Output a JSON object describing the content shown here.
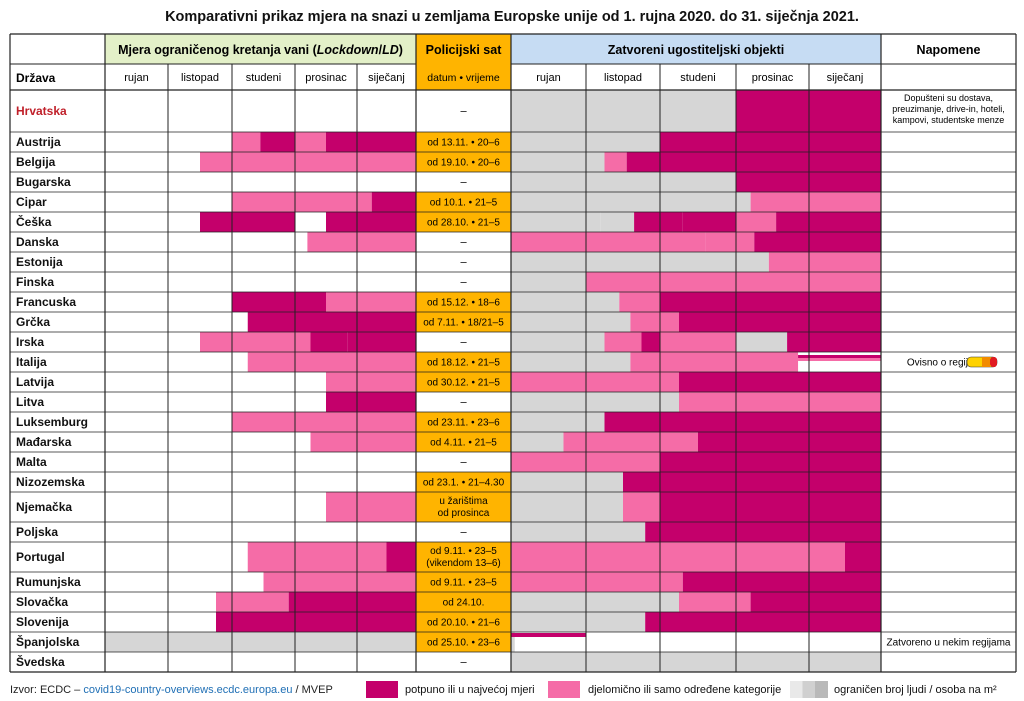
{
  "title": "Komparativni prikaz mjera na snazi u zemljama Europske unije od 1. rujna 2020. do 31. siječnja 2021.",
  "colors": {
    "full": "#c4006b",
    "partial": "#f56ca7",
    "limited": "#d6d6d6",
    "curfew_bg": "#ffb400",
    "lockdown_header_bg": "#e3f0c8",
    "restaurants_header_bg": "#c6dcf3"
  },
  "chart_data": {
    "type": "table",
    "groups": {
      "lockdown": "Mjera ograničenog kretanja vani (Lockdown/LD)",
      "curfew": "Policijski sat",
      "restaurants": "Zatvoreni ugostiteljski objekti",
      "notes": "Napomene"
    },
    "row_header": "Država",
    "months": [
      "rujan",
      "listopad",
      "studeni",
      "prosinac",
      "siječanj"
    ],
    "curfew_subheader": "datum • vrijeme",
    "countries": [
      {
        "name": "Hrvatska",
        "highlight": true,
        "curfew": "–",
        "note": "Dopušteni su dostava, preuzimanje, drive-in, hoteli, kampovi, studentske menze",
        "lockdown": [],
        "restaurants": [
          [
            0,
            3,
            "L"
          ],
          [
            3,
            5,
            "F"
          ]
        ]
      },
      {
        "name": "Austrija",
        "curfew": "od 13.11. • 20–6",
        "lockdown": [
          [
            2,
            2.45,
            "P"
          ],
          [
            2.45,
            3,
            "F"
          ],
          [
            3,
            3.5,
            "P"
          ],
          [
            3.5,
            5,
            "F"
          ]
        ],
        "restaurants": [
          [
            0,
            2,
            "L"
          ],
          [
            2,
            5,
            "F"
          ]
        ]
      },
      {
        "name": "Belgija",
        "curfew": "od 19.10. • 20–6",
        "lockdown": [
          [
            1.5,
            5,
            "P"
          ]
        ],
        "restaurants": [
          [
            0,
            1.25,
            "L"
          ],
          [
            1.25,
            1.55,
            "P"
          ],
          [
            1.55,
            5,
            "F"
          ]
        ]
      },
      {
        "name": "Bugarska",
        "curfew": "–",
        "lockdown": [],
        "restaurants": [
          [
            0,
            3,
            "L"
          ],
          [
            3,
            5,
            "F"
          ]
        ]
      },
      {
        "name": "Cipar",
        "curfew": "od 10.1. • 21–5",
        "lockdown": [
          [
            2,
            4.25,
            "P"
          ],
          [
            4.25,
            5,
            "F"
          ]
        ],
        "restaurants": [
          [
            0,
            3,
            "L"
          ],
          [
            3,
            3.2,
            "L"
          ],
          [
            3.2,
            5,
            "P"
          ]
        ]
      },
      {
        "name": "Češka",
        "curfew": "od 28.10. • 21–5",
        "lockdown": [
          [
            1.5,
            3,
            "F"
          ],
          [
            3.5,
            5,
            "F"
          ]
        ],
        "restaurants": [
          [
            0,
            1.2,
            "L"
          ],
          [
            1.2,
            1.65,
            "L"
          ],
          [
            1.65,
            2.3,
            "F"
          ],
          [
            2.3,
            3.55,
            "F"
          ],
          [
            3,
            3.55,
            "P"
          ],
          [
            3.55,
            5,
            "F"
          ]
        ]
      },
      {
        "name": "Danska",
        "curfew": "–",
        "lockdown": [
          [
            3.2,
            5,
            "P"
          ]
        ],
        "restaurants": [
          [
            0,
            2.6,
            "P"
          ],
          [
            2.6,
            3.25,
            "P"
          ],
          [
            3.25,
            5,
            "F"
          ]
        ]
      },
      {
        "name": "Estonija",
        "curfew": "–",
        "lockdown": [],
        "restaurants": [
          [
            0,
            3.45,
            "L"
          ],
          [
            3.45,
            5,
            "P"
          ]
        ]
      },
      {
        "name": "Finska",
        "curfew": "–",
        "lockdown": [],
        "restaurants": [
          [
            0,
            1,
            "L"
          ],
          [
            1,
            5,
            "P"
          ]
        ]
      },
      {
        "name": "Francuska",
        "curfew": "od 15.12. • 18–6",
        "lockdown": [
          [
            2,
            3.5,
            "F"
          ],
          [
            3.5,
            5,
            "P"
          ]
        ],
        "restaurants": [
          [
            0,
            1.45,
            "L"
          ],
          [
            1.45,
            2,
            "P"
          ],
          [
            2,
            5,
            "F"
          ]
        ]
      },
      {
        "name": "Grčka",
        "curfew": "od 7.11. • 18/21–5",
        "lockdown": [
          [
            2.25,
            5,
            "F"
          ]
        ],
        "restaurants": [
          [
            0,
            1.6,
            "L"
          ],
          [
            1.6,
            2.25,
            "P"
          ],
          [
            2.25,
            5,
            "F"
          ]
        ]
      },
      {
        "name": "Irska",
        "curfew": "–",
        "lockdown": [
          [
            1.5,
            3.25,
            "P"
          ],
          [
            3.25,
            3.85,
            "F"
          ],
          [
            3.85,
            5,
            "F"
          ]
        ],
        "restaurants": [
          [
            0,
            1.25,
            "L"
          ],
          [
            1.25,
            1.75,
            "P"
          ],
          [
            1.75,
            2,
            "F"
          ],
          [
            2,
            3,
            "P"
          ],
          [
            3,
            3.7,
            "L"
          ],
          [
            3.7,
            5,
            "F"
          ]
        ]
      },
      {
        "name": "Italija",
        "curfew": "od 18.12. • 21–5",
        "note": "Ovisno o regiji",
        "lockdown": [
          [
            2.25,
            5,
            "P"
          ]
        ],
        "restaurants": [
          [
            0,
            1.6,
            "L"
          ],
          [
            1.6,
            2,
            "P"
          ],
          [
            2,
            3.85,
            "P"
          ],
          [
            3.85,
            5,
            "italy"
          ]
        ]
      },
      {
        "name": "Latvija",
        "curfew": "od 30.12. • 21–5",
        "lockdown": [
          [
            3.5,
            5,
            "P"
          ]
        ],
        "restaurants": [
          [
            0,
            2.25,
            "P"
          ],
          [
            2.25,
            5,
            "F"
          ]
        ]
      },
      {
        "name": "Litva",
        "curfew": "–",
        "lockdown": [
          [
            3.5,
            4,
            "F"
          ],
          [
            4,
            5,
            "F"
          ]
        ],
        "restaurants": [
          [
            0,
            2,
            "L"
          ],
          [
            2,
            2.25,
            "L"
          ],
          [
            2.25,
            5,
            "P"
          ]
        ]
      },
      {
        "name": "Luksemburg",
        "curfew": "od 23.11. • 23–6",
        "lockdown": [
          [
            2,
            5,
            "P"
          ]
        ],
        "restaurants": [
          [
            0,
            1.25,
            "L"
          ],
          [
            1.25,
            5,
            "F"
          ]
        ]
      },
      {
        "name": "Mađarska",
        "curfew": "od 4.11. • 21–5",
        "lockdown": [
          [
            3.25,
            5,
            "P"
          ]
        ],
        "restaurants": [
          [
            0,
            0.7,
            "L"
          ],
          [
            0.7,
            2.5,
            "P"
          ],
          [
            2.5,
            5,
            "F"
          ]
        ]
      },
      {
        "name": "Malta",
        "curfew": "–",
        "lockdown": [],
        "restaurants": [
          [
            0,
            2,
            "P"
          ],
          [
            2,
            5,
            "F"
          ]
        ]
      },
      {
        "name": "Nizozemska",
        "curfew": "od 23.1. • 21–4.30",
        "lockdown": [],
        "restaurants": [
          [
            0,
            1.5,
            "L"
          ],
          [
            1.5,
            5,
            "F"
          ]
        ]
      },
      {
        "name": "Njemačka",
        "curfew": "u žarištima od prosinca",
        "lockdown": [
          [
            3.5,
            5,
            "P"
          ]
        ],
        "restaurants": [
          [
            0,
            1.5,
            "L"
          ],
          [
            1.5,
            2,
            "P"
          ],
          [
            2,
            5,
            "F"
          ]
        ]
      },
      {
        "name": "Poljska",
        "curfew": "–",
        "lockdown": [],
        "restaurants": [
          [
            0,
            1.8,
            "L"
          ],
          [
            1.8,
            5,
            "F"
          ]
        ]
      },
      {
        "name": "Portugal",
        "curfew": "od 9.11. • 23–5 (vikendom 13–6)",
        "lockdown": [
          [
            2.25,
            4.5,
            "P"
          ],
          [
            4.5,
            5,
            "F"
          ]
        ],
        "restaurants": [
          [
            0,
            4.5,
            "P"
          ],
          [
            4.5,
            5,
            "F"
          ]
        ]
      },
      {
        "name": "Rumunjska",
        "curfew": "od 9.11. • 23–5",
        "lockdown": [
          [
            2.5,
            5,
            "P"
          ]
        ],
        "restaurants": [
          [
            0,
            2.3,
            "P"
          ],
          [
            2.3,
            5,
            "F"
          ]
        ]
      },
      {
        "name": "Slovačka",
        "curfew": "od 24.10.",
        "lockdown": [
          [
            1.75,
            2.9,
            "P"
          ],
          [
            2.9,
            5,
            "F"
          ]
        ],
        "restaurants": [
          [
            0,
            1,
            "L"
          ],
          [
            1,
            2.25,
            "L"
          ],
          [
            2.25,
            3.2,
            "P"
          ],
          [
            3.2,
            5,
            "F"
          ]
        ]
      },
      {
        "name": "Slovenija",
        "curfew": "od 20.10. • 21–6",
        "lockdown": [
          [
            1.75,
            5,
            "F"
          ]
        ],
        "restaurants": [
          [
            0,
            1.8,
            "L"
          ],
          [
            1.8,
            5,
            "F"
          ]
        ]
      },
      {
        "name": "Španjolska",
        "curfew": "od 25.10. • 23–6",
        "note": "Zatvoreno u nekim regijama",
        "lockdown": [
          [
            0,
            5,
            "L"
          ]
        ],
        "restaurants": [
          [
            0,
            0.05,
            "L"
          ],
          [
            0,
            1,
            "spain"
          ]
        ]
      },
      {
        "name": "Švedska",
        "curfew": "–",
        "lockdown": [],
        "restaurants": [
          [
            0,
            5,
            "L"
          ]
        ]
      }
    ],
    "legend": [
      {
        "key": "F",
        "label": "potpuno ili u najvećoj mjeri"
      },
      {
        "key": "P",
        "label": "djelomično ili samo određene kategorije"
      },
      {
        "key": "L",
        "label": "ograničen broj ljudi / osoba na m²"
      }
    ]
  },
  "source": {
    "prefix": "Izvor: ECDC – ",
    "link": "covid19-country-overviews.ecdc.europa.eu",
    "suffix": " / MVEP"
  }
}
